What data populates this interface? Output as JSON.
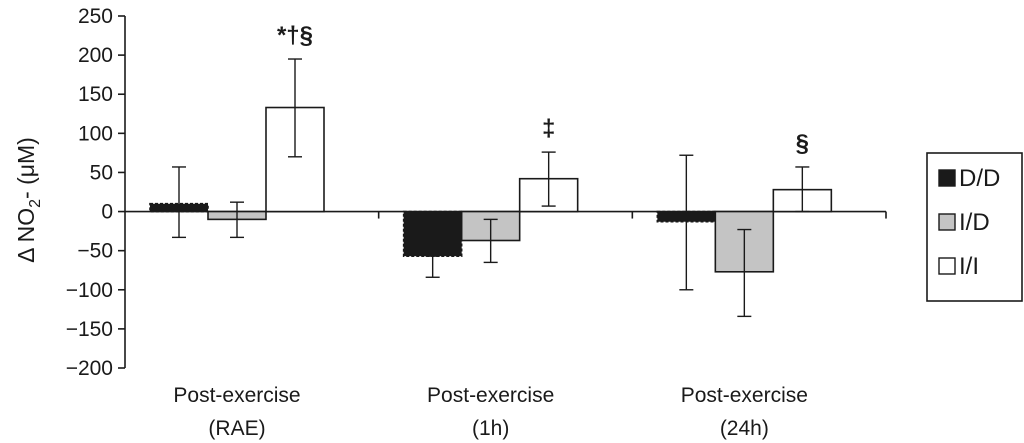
{
  "chart_data": {
    "type": "bar",
    "title": "",
    "xlabel": "",
    "ylabel": "Δ NO₂⁻ (μM)",
    "ylabel_parts": {
      "pre": "Δ NO",
      "sub": "2",
      "post": "- (μM)"
    },
    "ylim": [
      -200,
      250
    ],
    "yticks": [
      250,
      200,
      150,
      100,
      50,
      0,
      -50,
      -100,
      -150,
      -200
    ],
    "ytick_labels": [
      "250",
      "200",
      "150",
      "100",
      "50",
      "0",
      "−50",
      "−100",
      "−150",
      "−200"
    ],
    "categories": [
      [
        "Post-exercise",
        "(RAE)"
      ],
      [
        "Post-exercise",
        "(1h)"
      ],
      [
        "Post-exercise",
        "(24h)"
      ]
    ],
    "series": [
      {
        "name": "D/D",
        "color": "#1a1a1a",
        "values": [
          10,
          -57,
          -13
        ],
        "err_low": [
          -33,
          -84,
          -100
        ],
        "err_high": [
          57,
          -57,
          72
        ]
      },
      {
        "name": "I/D",
        "color": "#c4c4c4",
        "values": [
          -10,
          -37,
          -77
        ],
        "err_low": [
          -33,
          -65,
          -134
        ],
        "err_high": [
          12,
          -10,
          -23
        ]
      },
      {
        "name": "I/I",
        "color": "#ffffff",
        "values": [
          133,
          42,
          28
        ],
        "err_low": [
          70,
          7,
          0
        ],
        "err_high": [
          195,
          76,
          57
        ]
      }
    ],
    "annotations": [
      {
        "category": 0,
        "series": 2,
        "text": "*†§"
      },
      {
        "category": 1,
        "series": 2,
        "text": "‡"
      },
      {
        "category": 2,
        "series": 2,
        "text": "§"
      }
    ],
    "legend_position": "right"
  }
}
